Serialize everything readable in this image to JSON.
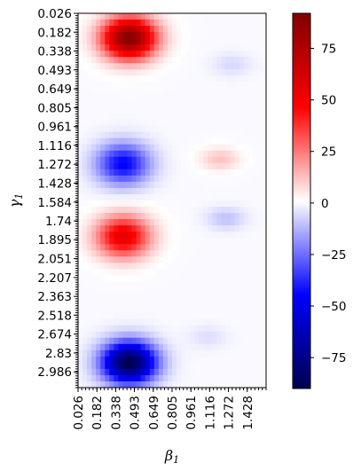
{
  "chart_data": {
    "type": "heatmap",
    "xlabel": "β",
    "xlabel_sub": "1",
    "ylabel": "γ",
    "ylabel_sub": "1",
    "x_tick_labels": [
      "0.026",
      "0.182",
      "0.338",
      "0.493",
      "0.649",
      "0.805",
      "0.961",
      "1.116",
      "1.272",
      "1.428"
    ],
    "y_tick_labels": [
      "0.026",
      "0.182",
      "0.338",
      "0.493",
      "0.649",
      "0.805",
      "0.961",
      "1.116",
      "1.272",
      "1.428",
      "1.584",
      "1.74",
      "1.895",
      "2.051",
      "2.207",
      "2.363",
      "2.518",
      "2.674",
      "2.83",
      "2.986"
    ],
    "x_range": [
      0.026,
      1.584
    ],
    "y_range": [
      0.026,
      3.116
    ],
    "y_inverted": true,
    "colormap": "seismic",
    "colorbar": {
      "vmin": -90,
      "vmax": 92,
      "ticks": [
        75,
        50,
        25,
        0,
        -25,
        -50,
        -75
      ],
      "tick_labels": [
        "75",
        "50",
        "25",
        "0",
        "−25",
        "−50",
        "−75"
      ]
    },
    "features": [
      {
        "beta": 0.45,
        "gamma": 0.23,
        "value": 90
      },
      {
        "beta": 0.4,
        "gamma": 1.27,
        "value": -45
      },
      {
        "beta": 0.4,
        "gamma": 1.87,
        "value": 55
      },
      {
        "beta": 0.45,
        "gamma": 2.91,
        "value": -90
      },
      {
        "beta": 1.2,
        "gamma": 1.23,
        "value": 12
      },
      {
        "beta": 1.25,
        "gamma": 1.72,
        "value": -10
      },
      {
        "beta": 1.3,
        "gamma": 0.45,
        "value": -6
      },
      {
        "beta": 1.1,
        "gamma": 2.7,
        "value": -5
      }
    ]
  }
}
